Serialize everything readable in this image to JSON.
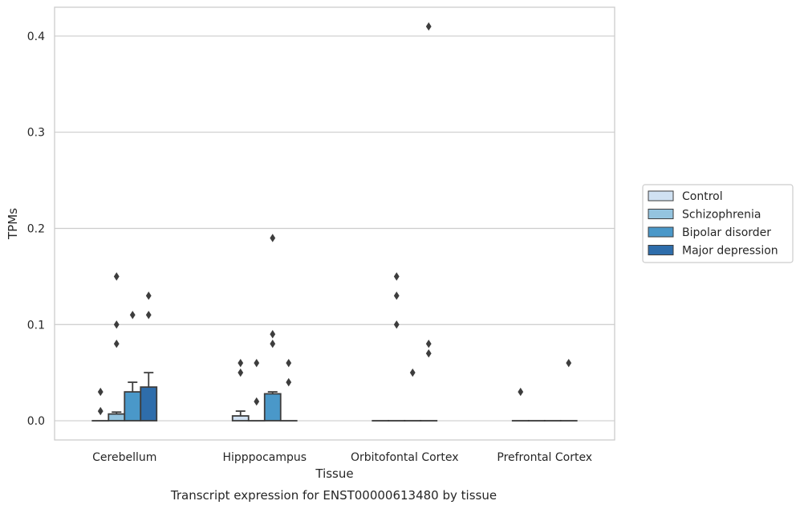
{
  "chart_data": {
    "type": "bar",
    "title": "",
    "caption": "Transcript expression for ENST00000613480 by tissue",
    "xlabel": "Tissue",
    "ylabel": "TPMs",
    "ylim": [
      -0.02,
      0.43
    ],
    "yticks": [
      0.0,
      0.1,
      0.2,
      0.3,
      0.4
    ],
    "ytick_labels": [
      "0.0",
      "0.1",
      "0.2",
      "0.3",
      "0.4"
    ],
    "grid": "horizontal",
    "legend_position": "right",
    "categories": [
      "Cerebellum",
      "Hipppocampus",
      "Orbitofontal Cortex",
      "Prefrontal Cortex"
    ],
    "series": [
      {
        "name": "Control",
        "color": "#d0e1f2",
        "values": [
          0.0,
          0.005,
          0.0,
          0.0
        ],
        "error_upper": [
          null,
          0.01,
          null,
          null
        ],
        "outliers": [
          [
            0.01,
            0.03
          ],
          [
            0.05,
            0.06
          ],
          [],
          [
            0.03
          ]
        ]
      },
      {
        "name": "Schizophrenia",
        "color": "#94c4df",
        "values": [
          0.007,
          0.0,
          0.0,
          0.0
        ],
        "error_upper": [
          0.009,
          null,
          null,
          null
        ],
        "outliers": [
          [
            0.08,
            0.1,
            0.15
          ],
          [
            0.02,
            0.06
          ],
          [
            0.1,
            0.13,
            0.15
          ],
          []
        ]
      },
      {
        "name": "Bipolar disorder",
        "color": "#4a98c9",
        "values": [
          0.03,
          0.028,
          0.0,
          0.0
        ],
        "error_upper": [
          0.04,
          0.03,
          null,
          null
        ],
        "outliers": [
          [
            0.11
          ],
          [
            0.08,
            0.09,
            0.19
          ],
          [
            0.05
          ],
          []
        ]
      },
      {
        "name": "Major depression",
        "color": "#2e6dab",
        "values": [
          0.035,
          0.0,
          0.0,
          0.0
        ],
        "error_upper": [
          0.05,
          null,
          null,
          null
        ],
        "outliers": [
          [
            0.11,
            0.13
          ],
          [
            0.04,
            0.06
          ],
          [
            0.07
          ],
          [
            0.06
          ]
        ]
      }
    ],
    "extra_outliers": [
      {
        "category": "Orbitofontal Cortex",
        "series": "Major depression",
        "values": [
          0.08,
          0.41
        ]
      }
    ]
  }
}
